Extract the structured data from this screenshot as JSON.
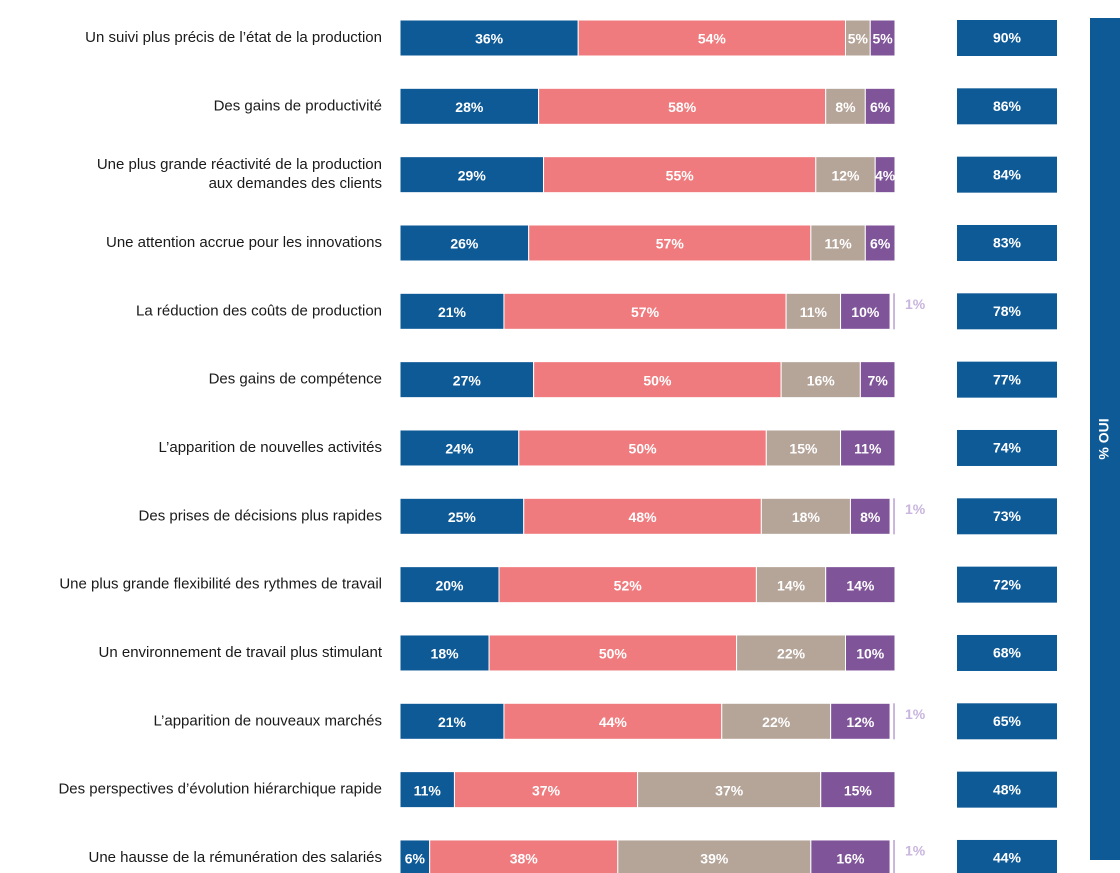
{
  "chart_data": {
    "type": "bar",
    "orientation": "horizontal",
    "stacked": true,
    "categories": [
      "Un suivi plus précis de l’état de la production",
      "Des gains de productivité",
      "Une plus grande réactivité de la production\naux demandes des clients",
      "Une attention accrue pour les innovations",
      "La réduction des coûts de production",
      "Des gains de compétence",
      "L’apparition de nouvelles activités",
      "Des prises de décisions plus rapides",
      "Une plus grande flexibilité des rythmes de travail",
      "Un environnement de travail plus stimulant",
      "L’apparition de nouveaux marchés",
      "Des perspectives d’évolution hiérarchique rapide",
      "Une hausse de la rémunération des salariés"
    ],
    "xlim": [
      0,
      100
    ],
    "series": [
      {
        "color": "#0e5a97",
        "values": [
          36,
          28,
          29,
          26,
          21,
          27,
          24,
          25,
          20,
          18,
          21,
          11,
          6
        ],
        "value_labels": [
          "36%",
          "28%",
          "29%",
          "26%",
          "21%",
          "27%",
          "24%",
          "25%",
          "20%",
          "18%",
          "21%",
          "11%",
          "6%"
        ]
      },
      {
        "color": "#f07b7e",
        "values": [
          54,
          58,
          55,
          57,
          57,
          50,
          50,
          48,
          52,
          50,
          44,
          37,
          38
        ],
        "value_labels": [
          "54%",
          "58%",
          "55%",
          "57%",
          "57%",
          "50%",
          "50%",
          "48%",
          "52%",
          "50%",
          "44%",
          "37%",
          "38%"
        ]
      },
      {
        "color": "#b5a498",
        "values": [
          5,
          8,
          12,
          11,
          11,
          16,
          15,
          18,
          14,
          22,
          22,
          37,
          39
        ],
        "value_labels": [
          "5%",
          "8%",
          "12%",
          "11%",
          "11%",
          "16%",
          "15%",
          "18%",
          "14%",
          "22%",
          "22%",
          "37%",
          "39%"
        ]
      },
      {
        "color": "#7f5499",
        "values": [
          5,
          6,
          4,
          6,
          10,
          7,
          11,
          8,
          14,
          10,
          12,
          15,
          16
        ],
        "value_labels": [
          "5%",
          "6%",
          "4%",
          "6%",
          "10%",
          "7%",
          "11%",
          "8%",
          "14%",
          "10%",
          "12%",
          "15%",
          "16%"
        ]
      },
      {
        "color": "#c9b5de",
        "values": [
          null,
          null,
          null,
          null,
          1,
          null,
          null,
          1,
          null,
          null,
          1,
          null,
          1
        ],
        "value_labels": [
          null,
          null,
          null,
          null,
          "1%",
          null,
          null,
          "1%",
          null,
          null,
          "1%",
          null,
          "1%"
        ]
      }
    ],
    "totals": {
      "title": "% OUI",
      "color": "#0e5a97",
      "values": [
        90,
        86,
        84,
        83,
        78,
        77,
        74,
        73,
        72,
        68,
        65,
        48,
        44
      ],
      "value_labels": [
        "90%",
        "86%",
        "84%",
        "83%",
        "78%",
        "77%",
        "74%",
        "73%",
        "72%",
        "68%",
        "65%",
        "48%",
        "44%"
      ]
    }
  }
}
